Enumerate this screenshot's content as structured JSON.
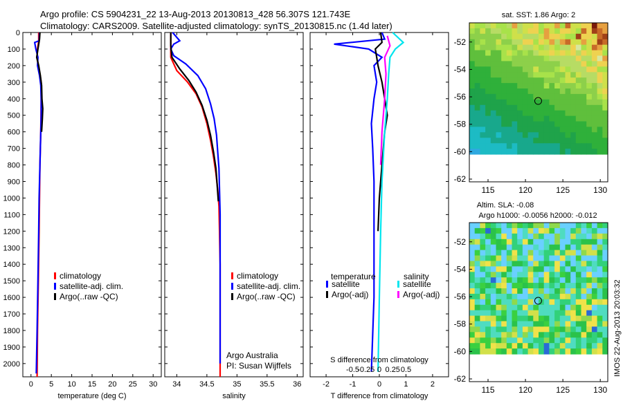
{
  "header": {
    "line1": "Argo profile: CS 5904231_22 13-Aug-2013 20130813_428 56.307S 121.743E",
    "line2": "Climatology: CARS2009. Satellite-adjusted climatology: synTS_20130815.nc (1.4d later)"
  },
  "colors": {
    "climatology": "#ff0000",
    "satellite": "#0000ff",
    "argo": "#000000",
    "sat_salinity": "#00e5ee",
    "argo_adj_salinity": "#ff00ff"
  },
  "chart_data": [
    {
      "type": "line",
      "name": "temperature",
      "xlabel": "temperature (deg C)",
      "xlim": [
        -2,
        32
      ],
      "ylim": [
        2080,
        0
      ],
      "xticks": [
        0,
        5,
        10,
        15,
        20,
        25,
        30
      ],
      "yticks": [
        0,
        100,
        200,
        300,
        400,
        500,
        600,
        700,
        800,
        900,
        1000,
        1100,
        1200,
        1300,
        1400,
        1500,
        1600,
        1700,
        1800,
        1900,
        2000
      ],
      "legend": [
        "climatology",
        "satellite-adj. clim.",
        "Argo(..raw -QC)"
      ],
      "series": [
        {
          "name": "climatology",
          "color": "#ff0000",
          "points": [
            [
              1.9,
              0
            ],
            [
              1.9,
              50
            ],
            [
              1.6,
              100
            ],
            [
              1.5,
              150
            ],
            [
              1.8,
              200
            ],
            [
              2.2,
              250
            ],
            [
              2.5,
              300
            ],
            [
              2.5,
              400
            ],
            [
              2.4,
              600
            ],
            [
              2.2,
              800
            ],
            [
              2.1,
              1000
            ],
            [
              2.0,
              1200
            ],
            [
              1.8,
              1500
            ],
            [
              1.6,
              1800
            ],
            [
              1.5,
              2080
            ]
          ]
        },
        {
          "name": "satellite-adj. clim.",
          "color": "#0000ff",
          "points": [
            [
              2.1,
              0
            ],
            [
              2.0,
              50
            ],
            [
              0.9,
              60
            ],
            [
              1.2,
              100
            ],
            [
              1.7,
              150
            ],
            [
              1.6,
              200
            ],
            [
              2.1,
              260
            ],
            [
              2.4,
              320
            ],
            [
              2.5,
              400
            ],
            [
              2.5,
              500
            ],
            [
              2.4,
              600
            ],
            [
              2.2,
              800
            ],
            [
              2.0,
              1000
            ],
            [
              1.9,
              1200
            ],
            [
              1.7,
              1500
            ],
            [
              1.5,
              1800
            ],
            [
              1.3,
              2060
            ]
          ]
        },
        {
          "name": "Argo(..raw -QC)",
          "color": "#000000",
          "points": [
            [
              2.2,
              0
            ],
            [
              2.1,
              40
            ],
            [
              1.7,
              100
            ],
            [
              1.4,
              150
            ],
            [
              1.9,
              200
            ],
            [
              2.3,
              260
            ],
            [
              2.6,
              320
            ],
            [
              2.7,
              400
            ],
            [
              2.9,
              460
            ],
            [
              2.8,
              520
            ],
            [
              2.6,
              600
            ]
          ]
        }
      ]
    },
    {
      "type": "line",
      "name": "salinity",
      "xlabel": "salinity",
      "xlim": [
        33.8,
        36.1
      ],
      "ylim": [
        2080,
        0
      ],
      "xticks": [
        34,
        34.5,
        35,
        35.5,
        36
      ],
      "legend": [
        "climatology",
        "satellite-adj. clim.",
        "Argo(..raw -QC)"
      ],
      "annotation": [
        "Argo Australia",
        "PI: Susan Wijffels"
      ],
      "series": [
        {
          "name": "climatology",
          "color": "#ff0000",
          "points": [
            [
              33.9,
              0
            ],
            [
              33.9,
              50
            ],
            [
              33.9,
              150
            ],
            [
              34.0,
              230
            ],
            [
              34.18,
              300
            ],
            [
              34.32,
              370
            ],
            [
              34.42,
              450
            ],
            [
              34.5,
              550
            ],
            [
              34.56,
              650
            ],
            [
              34.61,
              750
            ],
            [
              34.65,
              850
            ],
            [
              34.68,
              950
            ],
            [
              34.7,
              1050
            ],
            [
              34.71,
              1200
            ],
            [
              34.72,
              1400
            ],
            [
              34.72,
              2080
            ]
          ]
        },
        {
          "name": "satellite-adj. clim.",
          "color": "#0000ff",
          "points": [
            [
              33.93,
              0
            ],
            [
              34.05,
              50
            ],
            [
              33.95,
              70
            ],
            [
              33.9,
              100
            ],
            [
              33.95,
              140
            ],
            [
              34.15,
              190
            ],
            [
              34.35,
              260
            ],
            [
              34.48,
              340
            ],
            [
              34.56,
              430
            ],
            [
              34.62,
              520
            ],
            [
              34.66,
              620
            ],
            [
              34.68,
              720
            ],
            [
              34.7,
              820
            ],
            [
              34.71,
              950
            ],
            [
              34.72,
              1100
            ],
            [
              34.72,
              2000
            ]
          ]
        },
        {
          "name": "Argo(..raw -QC)",
          "color": "#000000",
          "points": [
            [
              33.9,
              0
            ],
            [
              33.9,
              80
            ],
            [
              33.92,
              150
            ],
            [
              34.05,
              220
            ],
            [
              34.2,
              290
            ],
            [
              34.32,
              360
            ],
            [
              34.42,
              440
            ],
            [
              34.5,
              530
            ],
            [
              34.56,
              620
            ],
            [
              34.61,
              720
            ],
            [
              34.65,
              820
            ],
            [
              34.67,
              920
            ],
            [
              34.69,
              1020
            ]
          ]
        }
      ]
    },
    {
      "type": "line",
      "name": "difference",
      "xlabel": "T difference from climatology",
      "xlabel_top": "S difference from climatology",
      "xlim": [
        -2.6,
        2.6
      ],
      "ylim": [
        2080,
        0
      ],
      "xticks": [
        -2,
        -1,
        0,
        1,
        2
      ],
      "xticks_top": [
        -0.5,
        -0.25,
        0,
        0.25,
        0.5
      ],
      "legend": {
        "temperature": "temperature",
        "salinity": "salinity",
        "items": [
          [
            "satellite",
            "satellite"
          ],
          [
            "Argo(-adj)",
            "Argo(-adj)"
          ]
        ]
      },
      "series": [
        {
          "name": "satellite",
          "color": "#0000ff",
          "points": [
            [
              0.1,
              0
            ],
            [
              0.2,
              40
            ],
            [
              -1.7,
              70
            ],
            [
              -0.4,
              100
            ],
            [
              0.1,
              150
            ],
            [
              -0.2,
              200
            ],
            [
              -0.1,
              300
            ],
            [
              -0.2,
              400
            ],
            [
              -0.3,
              550
            ],
            [
              -0.25,
              700
            ],
            [
              -0.2,
              900
            ],
            [
              -0.2,
              1200
            ],
            [
              -0.2,
              1600
            ],
            [
              -0.3,
              2050
            ]
          ]
        },
        {
          "name": "Argo(-adj)",
          "color": "#000000",
          "points": [
            [
              0.05,
              0
            ],
            [
              0.1,
              60
            ],
            [
              -0.15,
              100
            ],
            [
              -0.1,
              150
            ],
            [
              -0.05,
              200
            ],
            [
              0.1,
              300
            ],
            [
              0.2,
              400
            ],
            [
              0.3,
              500
            ],
            [
              0.2,
              600
            ],
            [
              0.1,
              800
            ],
            [
              0.0,
              1000
            ],
            [
              -0.05,
              1200
            ]
          ]
        },
        {
          "name": "satellite",
          "color": "#00e5ee",
          "points": [
            [
              0.5,
              0
            ],
            [
              0.9,
              60
            ],
            [
              0.6,
              100
            ],
            [
              0.4,
              150
            ],
            [
              0.35,
              250
            ],
            [
              0.3,
              400
            ],
            [
              0.2,
              600
            ],
            [
              0.1,
              900
            ],
            [
              0.05,
              1200
            ],
            [
              0.0,
              1600
            ],
            [
              -0.05,
              2050
            ]
          ]
        },
        {
          "name": "Argo(-adj)",
          "color": "#ff00ff",
          "points": [
            [
              0.3,
              20
            ],
            [
              0.4,
              80
            ],
            [
              0.2,
              150
            ],
            [
              0.25,
              250
            ],
            [
              0.2,
              400
            ],
            [
              0.1,
              600
            ],
            [
              0.05,
              800
            ]
          ]
        }
      ]
    },
    {
      "type": "heatmap",
      "name": "sst",
      "title": "sat. SST: 1.86 Argo: 2",
      "xlim": [
        112.5,
        131
      ],
      "ylim": [
        -62.2,
        -50.6
      ],
      "xticks": [
        115,
        120,
        125,
        130
      ],
      "yticks": [
        -52,
        -54,
        -56,
        -58,
        -60,
        -62
      ],
      "marker": [
        121.7,
        -56.3
      ]
    },
    {
      "type": "heatmap",
      "name": "sla",
      "title": "Altim. SLA: -0.08",
      "subtitle": "Argo h1000: -0.0056 h2000: -0.012",
      "xlim": [
        112.5,
        131
      ],
      "ylim": [
        -62.2,
        -50.6
      ],
      "xticks": [
        115,
        120,
        125,
        130
      ],
      "yticks": [
        -52,
        -54,
        -56,
        -58,
        -60,
        -62
      ],
      "marker": [
        121.7,
        -56.3
      ]
    }
  ],
  "footer_stamp": "IMOS 22-Aug-2013 20:03:32"
}
